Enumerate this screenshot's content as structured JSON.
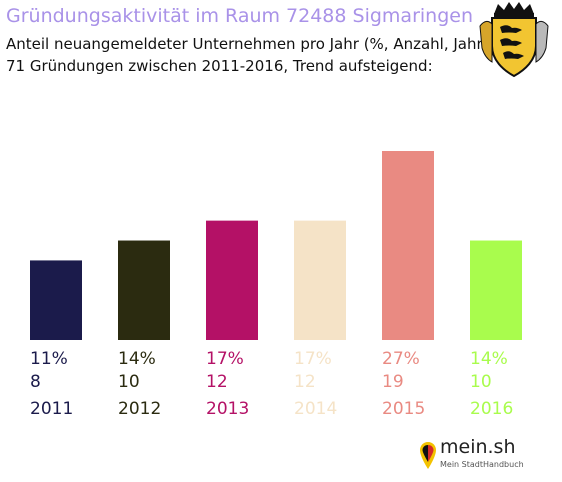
{
  "chart_data": {
    "type": "bar",
    "title": "Gründungsaktivität im Raum 72488 Sigmaringen",
    "subtitle_line1": "Anteil neuangemeldeter Unternehmen pro Jahr (%, Anzahl, Jahr)",
    "subtitle_line2": "71 Gründungen zwischen 2011-2016, Trend aufsteigend:",
    "categories": [
      "2011",
      "2012",
      "2013",
      "2014",
      "2015",
      "2016"
    ],
    "percent_labels": [
      "11%",
      "14%",
      "17%",
      "17%",
      "27%",
      "14%"
    ],
    "values": [
      8,
      10,
      12,
      12,
      19,
      10
    ],
    "colors": [
      "#1b1b4b",
      "#2b2b10",
      "#b41166",
      "#f5e3c7",
      "#e98a82",
      "#a9fc4d"
    ],
    "ylim": [
      0,
      19
    ],
    "grid": false,
    "legend": "none"
  },
  "logo": {
    "brand": "mein.sh",
    "tagline": "Mein StadtHandbuch",
    "name": "mein-sh-logo"
  },
  "coat_of_arms": {
    "name": "baden-wuerttemberg-coat-of-arms"
  }
}
